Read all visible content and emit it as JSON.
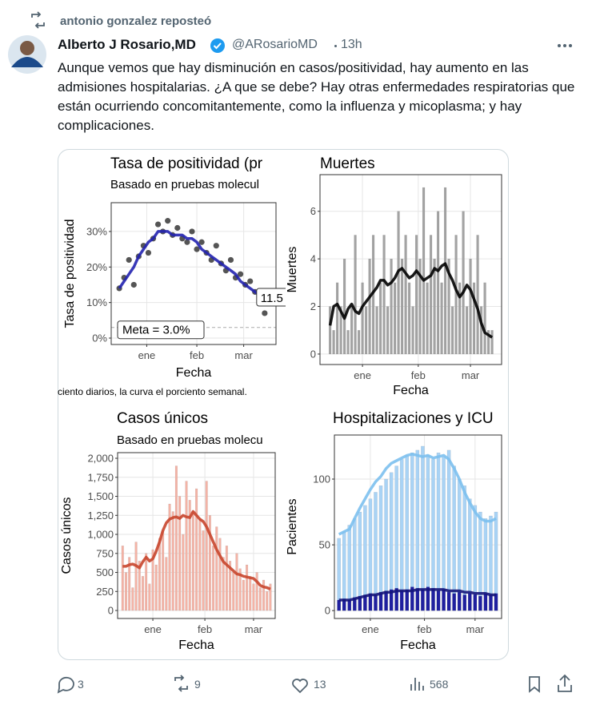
{
  "repost": {
    "text": "antonio gonzalez reposteó"
  },
  "author": {
    "name": "Alberto J Rosario,MD",
    "handle": "@ARosarioMD",
    "time": "13h"
  },
  "text": "Aunque vemos que hay disminución en casos/positividad, hay aumento en las admisiones hospitalarias. ¿A que se debe?  Hay otras enfermedades respiratorias que están ocurriendo concomitantemente, como la influenza y micoplasma; y hay complicaciones.",
  "chart_data": [
    {
      "type": "scatter",
      "title": "Tasa de positividad (pr",
      "subtitle": "Basado en pruebas molecul",
      "caption": "ciento diarios, la curva el porciento semanal.",
      "xlabel": "Fecha",
      "ylabel": "Tasa de positividad",
      "x": [
        -17,
        -14,
        -11,
        -8,
        -5,
        -2,
        1,
        4,
        7,
        10,
        13,
        16,
        19,
        22,
        25,
        28,
        31,
        34,
        37,
        40,
        43,
        46,
        49,
        52,
        55,
        58,
        61,
        64,
        67,
        70,
        73
      ],
      "series": [
        {
          "kind": "points",
          "color": "#2b2b2b",
          "values": [
            14,
            17,
            22,
            15,
            23,
            26,
            24,
            28,
            32,
            30,
            33,
            29,
            31,
            28,
            27,
            30,
            25,
            27,
            24,
            22,
            26,
            21,
            19,
            22,
            17,
            18,
            15,
            16,
            13,
            11,
            7
          ]
        },
        {
          "kind": "line",
          "color": "#2222b0",
          "values": [
            14,
            16,
            18,
            20,
            23,
            25,
            27,
            28,
            30,
            30,
            30,
            29,
            29,
            29,
            28,
            28,
            27,
            25,
            24,
            23,
            22,
            21,
            20,
            19,
            18,
            16,
            15,
            14,
            13,
            12,
            null
          ]
        }
      ],
      "target": {
        "value": 3,
        "label": "Meta = 3.0%"
      },
      "end_label": {
        "value": 11.5,
        "label": "11.5"
      },
      "xlim": [
        -22,
        80
      ],
      "xticks": [
        {
          "value": 0,
          "label": "ene"
        },
        {
          "value": 31,
          "label": "feb"
        },
        {
          "value": 60,
          "label": "mar"
        }
      ],
      "ylim": [
        -1.8,
        38.1
      ],
      "yticks": [
        {
          "value": 0,
          "label": "0%"
        },
        {
          "value": 10,
          "label": "10%"
        },
        {
          "value": 20,
          "label": "20%"
        },
        {
          "value": 30,
          "label": "30%"
        }
      ],
      "grid": true
    },
    {
      "type": "bar",
      "title": "Muertes",
      "xlabel": "Fecha",
      "ylabel": "Muertes",
      "x": [
        -18,
        -16,
        -14,
        -12,
        -10,
        -8,
        -6,
        -4,
        -2,
        0,
        2,
        4,
        6,
        8,
        10,
        12,
        14,
        16,
        18,
        20,
        22,
        24,
        26,
        28,
        30,
        32,
        34,
        36,
        38,
        40,
        42,
        44,
        46,
        48,
        50,
        52,
        54,
        56,
        58,
        60,
        62,
        64,
        66,
        68,
        70,
        72
      ],
      "series": [
        {
          "kind": "bars",
          "color": "#a3a3a3",
          "values": [
            2,
            1,
            3,
            2,
            4,
            1,
            2,
            5,
            1,
            3,
            2,
            4,
            5,
            2,
            3,
            5,
            2,
            4,
            3,
            6,
            4,
            5,
            3,
            2,
            5,
            4,
            7,
            3,
            5,
            4,
            6,
            3,
            7,
            4,
            2,
            5,
            3,
            6,
            2,
            4,
            3,
            5,
            2,
            3,
            1,
            1
          ]
        },
        {
          "kind": "line",
          "color": "#000000",
          "values": [
            1.2,
            2.0,
            2.1,
            1.8,
            1.5,
            1.9,
            2.1,
            1.8,
            1.7,
            2.0,
            2.2,
            2.4,
            2.6,
            2.8,
            3.1,
            3.1,
            2.9,
            3.0,
            3.2,
            3.5,
            3.6,
            3.4,
            3.2,
            3.3,
            3.5,
            3.3,
            3.1,
            3.2,
            3.3,
            3.6,
            3.5,
            3.7,
            3.8,
            3.4,
            3.1,
            2.7,
            2.4,
            2.6,
            2.9,
            2.7,
            2.3,
            1.9,
            1.3,
            0.9,
            0.8,
            0.7
          ]
        }
      ],
      "xlim": [
        -23.6,
        77.3
      ],
      "xticks": [
        {
          "value": 0,
          "label": "ene"
        },
        {
          "value": 31,
          "label": "feb"
        },
        {
          "value": 60,
          "label": "mar"
        }
      ],
      "ylim": [
        -0.44,
        7.54
      ],
      "yticks": [
        0,
        2,
        4,
        6
      ],
      "grid": true
    },
    {
      "type": "bar",
      "title": "Casos únicos",
      "subtitle": "Basado en pruebas molecu",
      "xlabel": "Fecha",
      "ylabel": "Casos únicos",
      "x": [
        -18,
        -16,
        -14,
        -12,
        -10,
        -8,
        -6,
        -4,
        -2,
        0,
        2,
        4,
        6,
        8,
        10,
        12,
        14,
        16,
        18,
        20,
        22,
        24,
        26,
        28,
        30,
        32,
        34,
        36,
        38,
        40,
        42,
        44,
        46,
        48,
        50,
        52,
        54,
        56,
        58,
        60,
        62,
        64,
        66,
        68,
        70
      ],
      "series": [
        {
          "kind": "bars",
          "color": "#f4b3a6",
          "values": [
            850,
            500,
            700,
            300,
            900,
            650,
            450,
            750,
            350,
            800,
            600,
            950,
            1050,
            700,
            1400,
            1300,
            1900,
            1500,
            1000,
            1700,
            1450,
            1300,
            1600,
            1200,
            1050,
            1700,
            1250,
            850,
            1100,
            950,
            700,
            850,
            650,
            500,
            750,
            550,
            400,
            600,
            450,
            350,
            500,
            300,
            400,
            250,
            350
          ]
        },
        {
          "kind": "line",
          "color": "#c8452c",
          "values": [
            580,
            580,
            600,
            610,
            590,
            560,
            640,
            700,
            650,
            680,
            780,
            900,
            1050,
            1150,
            1200,
            1220,
            1230,
            1210,
            1250,
            1230,
            1220,
            1300,
            1250,
            1200,
            1170,
            1100,
            1000,
            900,
            800,
            720,
            640,
            600,
            560,
            520,
            480,
            470,
            450,
            440,
            430,
            420,
            380,
            330,
            310,
            300,
            280
          ]
        }
      ],
      "xlim": [
        -21,
        72.9
      ],
      "xticks": [
        {
          "value": 0,
          "label": "ene"
        },
        {
          "value": 31,
          "label": "feb"
        },
        {
          "value": 60,
          "label": "mar"
        }
      ],
      "ylim": [
        -105,
        2074
      ],
      "yticks": [
        0,
        250,
        500,
        750,
        {
          "value": 1000,
          "label": "1,000"
        },
        {
          "value": 1250,
          "label": "1,250"
        },
        {
          "value": 1500,
          "label": "1,500"
        },
        {
          "value": 1750,
          "label": "1,750"
        },
        {
          "value": 2000,
          "label": "2,000"
        }
      ],
      "grid": true
    },
    {
      "type": "bar",
      "title": "Hospitalizaciones y ICU",
      "xlabel": "Fecha",
      "ylabel": "Pacientes",
      "x": [
        -18,
        -15,
        -12,
        -9,
        -6,
        -3,
        0,
        3,
        6,
        9,
        12,
        15,
        18,
        21,
        24,
        27,
        30,
        33,
        36,
        39,
        42,
        45,
        48,
        51,
        54,
        57,
        60,
        63,
        66,
        69,
        72
      ],
      "series": [
        {
          "kind": "bars",
          "color": "#a9d3f5",
          "values": [
            55,
            60,
            65,
            70,
            75,
            80,
            85,
            90,
            95,
            100,
            105,
            110,
            115,
            118,
            120,
            122,
            125,
            118,
            115,
            120,
            117,
            122,
            110,
            100,
            95,
            85,
            80,
            75,
            70,
            72,
            75
          ]
        },
        {
          "kind": "bars",
          "color": "#1f1fa0",
          "values": [
            8,
            9,
            8,
            10,
            11,
            12,
            13,
            12,
            14,
            15,
            16,
            17,
            15,
            16,
            18,
            17,
            16,
            18,
            17,
            15,
            16,
            14,
            13,
            14,
            12,
            13,
            12,
            11,
            13,
            12,
            13
          ]
        },
        {
          "kind": "line",
          "color": "#7cc0ee",
          "values": [
            58,
            60,
            62,
            70,
            78,
            85,
            92,
            98,
            102,
            108,
            112,
            114,
            116,
            118,
            119,
            118,
            117,
            118,
            116,
            117,
            118,
            115,
            108,
            100,
            90,
            82,
            75,
            70,
            68,
            68,
            70
          ]
        },
        {
          "kind": "line",
          "color": "#15157a",
          "values": [
            8,
            8,
            8,
            9,
            10,
            11,
            12,
            12,
            13,
            14,
            14,
            15,
            15,
            15,
            15,
            16,
            16,
            16,
            16,
            16,
            16,
            15,
            15,
            15,
            14,
            14,
            13,
            13,
            13,
            12,
            12
          ]
        }
      ],
      "xlim": [
        -20.6,
        75.2
      ],
      "xticks": [
        {
          "value": 0,
          "label": "ene"
        },
        {
          "value": 31,
          "label": "feb"
        },
        {
          "value": 60,
          "label": "mar"
        }
      ],
      "ylim": [
        -6,
        133.5
      ],
      "yticks": [
        0,
        50,
        100
      ],
      "grid": true
    }
  ],
  "actions": {
    "replies": 3,
    "reposts": 9,
    "likes": 13,
    "views": 568
  }
}
